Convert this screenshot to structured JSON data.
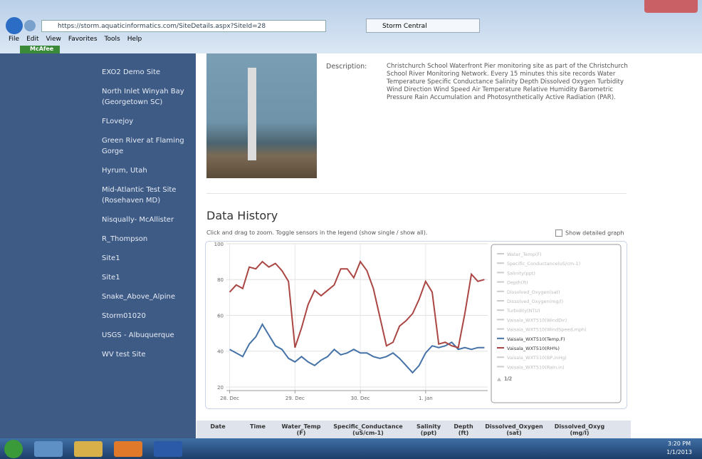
{
  "browser": {
    "url": "https://storm.aquaticinformatics.com/SiteDetails.aspx?SiteId=28",
    "tab": "Storm Central",
    "menu": [
      "File",
      "Edit",
      "View",
      "Favorites",
      "Tools",
      "Help"
    ],
    "favorite": "McAfee"
  },
  "sidebar": {
    "items": [
      "EXO2 Demo Site",
      "North Inlet Winyah Bay (Georgetown SC)",
      "FLovejoy",
      "Green River at Flaming Gorge",
      "Hyrum, Utah",
      "Mid-Atlantic Test Site (Rosehaven MD)",
      "Nisqually- McAllister",
      "R_Thompson",
      "Site1",
      "Site1",
      "Snake_Above_Alpine",
      "Storm01020",
      "USGS - Albuquerque",
      "WV test Site"
    ]
  },
  "description": {
    "label": "Description:",
    "text": "Christchurch School Waterfront Pier monitoring site as part of the Christchurch School River Monitoring Network. Every 15 minutes this site records Water Temperature Specific Conductance Salinity Depth Dissolved Oxygen Turbidity Wind Direction Wind Speed Air Temperature Relative Humidity Barometric Pressure Rain Accumulation and Photosynthetically Active Radiation (PAR)."
  },
  "data_history": {
    "title": "Data History",
    "instructions": "Click and drag to zoom. Toggle sensors in the legend (show single / show all).",
    "checkbox": "Show detailed graph"
  },
  "chart_data": {
    "type": "line",
    "x": [
      0,
      0.1,
      0.2,
      0.3,
      0.4,
      0.5,
      0.6,
      0.7,
      0.8,
      0.9,
      1,
      1.1,
      1.2,
      1.3,
      1.4,
      1.5,
      1.6,
      1.7,
      1.8,
      1.9,
      2,
      2.1,
      2.2,
      2.3,
      2.4,
      2.5,
      2.6,
      2.7,
      2.8,
      2.9,
      3,
      3.1,
      3.2,
      3.3,
      3.4,
      3.5,
      3.6,
      3.7,
      3.8,
      3.9
    ],
    "series": [
      {
        "name": "Vaisala_WXT510(Temp,F)",
        "color": "#4572a7",
        "values": [
          41,
          39,
          37,
          44,
          48,
          55,
          49,
          43,
          41,
          36,
          34,
          37,
          34,
          32,
          35,
          37,
          41,
          38,
          39,
          41,
          39,
          39,
          37,
          36,
          37,
          39,
          36,
          32,
          28,
          32,
          39,
          43,
          42,
          43,
          45,
          41,
          42,
          41,
          42,
          42
        ]
      },
      {
        "name": "Vaisala_WXT510(RH%)",
        "color": "#aa4643",
        "values": [
          73,
          77,
          75,
          87,
          86,
          90,
          87,
          89,
          85,
          79,
          42,
          53,
          66,
          74,
          71,
          74,
          77,
          86,
          86,
          81,
          90,
          85,
          75,
          59,
          43,
          45,
          54,
          57,
          61,
          69,
          79,
          73,
          44,
          45,
          43,
          42,
          61,
          83,
          79,
          80
        ]
      }
    ],
    "legend_hidden": [
      "Water_Temp(F)",
      "Specific_Conductance(uS/cm-1)",
      "Salinity(ppt)",
      "Depth(ft)",
      "Dissolved_Oxygen(sat)",
      "Dissolved_Oxygen(mg/l)",
      "Turbidity(NTU)",
      "Vaisala_WXT510(WindDir)",
      "Vaisala_WXT510(WindSpeed,mph)",
      "Vaisala_WXT510(BP,inHg)",
      "Vaisala_WXT510(Rain,in)"
    ],
    "legend_page": "1/2",
    "xlim": [
      -0.05,
      3.95
    ],
    "xticks": [
      {
        "value": 0,
        "label": "28. Dec"
      },
      {
        "value": 1,
        "label": "29. Dec"
      },
      {
        "value": 2,
        "label": "30. Dec"
      },
      {
        "value": 3,
        "label": "1. Jan"
      }
    ],
    "ylim": [
      18,
      100
    ],
    "yticks": [
      20,
      40,
      60,
      80,
      100
    ],
    "grid": true
  },
  "table": {
    "header": [
      "Date",
      "Time",
      "Water_Temp (F)",
      "Specific_Conductance (uS/cm-1)",
      "Salinity (ppt)",
      "Depth (ft)",
      "Dissolved_Oxygen (sat)",
      "Dissolved_Oxyg (mg/l)"
    ]
  },
  "taskbar": {
    "time": "3:20 PM",
    "date": "1/1/2013"
  }
}
